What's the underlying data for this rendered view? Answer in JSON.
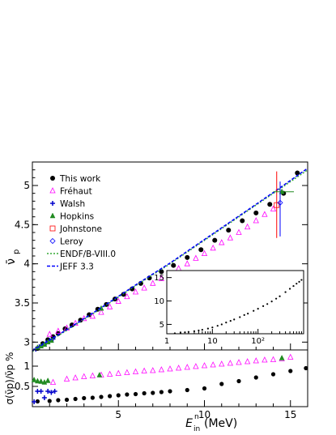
{
  "chart_data": [
    {
      "type": "scatter",
      "panel": "main",
      "ylabel": "ν̄",
      "ylabel_sub": "p",
      "xlim": [
        0,
        16
      ],
      "ylim": [
        2.9,
        5.3
      ],
      "yticks": [
        "3",
        "3.5",
        "4",
        "4.5",
        "5"
      ],
      "legend_position": "top-left",
      "series": [
        {
          "name": "This work",
          "marker": "dot",
          "color": "#000000",
          "x": [
            0.3,
            0.6,
            0.9,
            1.2,
            1.5,
            1.9,
            2.3,
            2.8,
            3.3,
            3.8,
            4.3,
            4.8,
            5.3,
            5.8,
            6.3,
            6.8,
            7.5,
            8.2,
            9.0,
            9.8,
            10.6,
            11.4,
            12.2,
            13.0,
            13.8,
            14.6,
            15.4
          ],
          "y": [
            2.92,
            2.98,
            3.03,
            3.07,
            3.11,
            3.17,
            3.22,
            3.28,
            3.35,
            3.42,
            3.48,
            3.55,
            3.61,
            3.68,
            3.75,
            3.82,
            3.9,
            3.98,
            4.08,
            4.18,
            4.3,
            4.43,
            4.55,
            4.65,
            4.76,
            4.9,
            5.16
          ]
        },
        {
          "name": "Fréhaut",
          "marker": "triangle-open",
          "color": "#ff00ff",
          "x": [
            1.0,
            1.5,
            2.0,
            2.5,
            3.0,
            3.5,
            4.0,
            4.5,
            5.0,
            5.5,
            6.0,
            6.5,
            7.0,
            7.5,
            8.0,
            8.5,
            9.0,
            9.5,
            10.0,
            10.5,
            11.0,
            11.5,
            12.0,
            12.5,
            13.0,
            13.5,
            14.0
          ],
          "y": [
            3.1,
            3.14,
            3.18,
            3.24,
            3.3,
            3.33,
            3.38,
            3.45,
            3.52,
            3.58,
            3.64,
            3.69,
            3.75,
            3.81,
            3.87,
            3.94,
            4.0,
            4.07,
            4.13,
            4.2,
            4.27,
            4.33,
            4.4,
            4.47,
            4.55,
            4.63,
            4.7
          ]
        },
        {
          "name": "Walsh",
          "marker": "cross",
          "color": "#0000cc",
          "x": [
            0.2,
            0.4,
            0.6,
            0.8,
            1.0,
            1.2
          ],
          "y": [
            2.91,
            2.94,
            2.96,
            2.99,
            3.02,
            3.04
          ]
        },
        {
          "name": "Hopkins",
          "marker": "triangle-filled",
          "color": "#228b22",
          "x": [
            0.3,
            0.5,
            0.7,
            0.9,
            1.1,
            4.0,
            14.5
          ],
          "y": [
            2.93,
            2.95,
            2.97,
            3.0,
            3.02,
            3.43,
            4.92
          ]
        },
        {
          "name": "Johnstone",
          "marker": "square-open",
          "color": "#ff0000",
          "x": [
            14.2
          ],
          "y": [
            4.75
          ]
        },
        {
          "name": "Leroy",
          "marker": "diamond-open",
          "color": "#0000ff",
          "x": [
            14.4
          ],
          "y": [
            4.78
          ]
        },
        {
          "name": "ENDF/B-VIII.0",
          "line": "dotted",
          "color": "#33aa33",
          "x": [
            0,
            2,
            4,
            6,
            8,
            10,
            12,
            14,
            16
          ],
          "y": [
            2.88,
            3.15,
            3.43,
            3.72,
            4.0,
            4.3,
            4.6,
            4.9,
            5.2
          ]
        },
        {
          "name": "JEFF 3.3",
          "line": "dashed",
          "color": "#0000ff",
          "x": [
            0,
            2,
            4,
            6,
            8,
            10,
            12,
            14,
            16
          ],
          "y": [
            2.89,
            3.16,
            3.44,
            3.73,
            4.01,
            4.31,
            4.61,
            4.91,
            5.22
          ]
        }
      ]
    },
    {
      "type": "scatter",
      "panel": "inset",
      "xscale": "log",
      "xlim": [
        1,
        1000
      ],
      "ylim": [
        3,
        16.5
      ],
      "xticks": [
        "1",
        "10",
        "10²"
      ],
      "yticks": [
        "5",
        "10",
        "15"
      ],
      "x": [
        1.5,
        2,
        2.5,
        3,
        4,
        5,
        6,
        8,
        10,
        13,
        16,
        20,
        25,
        30,
        40,
        50,
        60,
        80,
        100,
        130,
        160,
        200,
        250,
        300,
        400,
        500,
        600,
        700,
        800,
        900
      ],
      "y": [
        3.1,
        3.2,
        3.3,
        3.4,
        3.55,
        3.7,
        3.85,
        4.1,
        4.35,
        4.7,
        5.0,
        5.4,
        5.75,
        6.05,
        6.55,
        7.0,
        7.3,
        7.9,
        8.35,
        8.9,
        9.35,
        9.9,
        10.5,
        11.0,
        11.9,
        12.6,
        13.2,
        13.7,
        14.1,
        14.5
      ]
    },
    {
      "type": "scatter",
      "panel": "ratio",
      "ylabel": "σ(ν̄p)/ν̄p %",
      "xlabel": "E",
      "xlabel_sup": "n",
      "xlabel_sub": "in",
      "xlabel_unit": "(MeV)",
      "xlim": [
        0,
        16
      ],
      "ylim": [
        0,
        1.4
      ],
      "xticks": [
        "5",
        "10",
        "15"
      ],
      "yticks": [
        "0.5",
        "1"
      ],
      "series": [
        {
          "name": "This work",
          "marker": "dot",
          "color": "#000000",
          "x": [
            0.3,
            1.0,
            1.5,
            2.0,
            2.5,
            3.0,
            3.5,
            4.0,
            4.5,
            5.0,
            5.5,
            6.0,
            6.5,
            7.0,
            7.5,
            8.0,
            9.0,
            10.0,
            11.0,
            12.0,
            13.0,
            14.0,
            15.0,
            15.9
          ],
          "y": [
            0.13,
            0.14,
            0.16,
            0.17,
            0.19,
            0.21,
            0.22,
            0.24,
            0.26,
            0.28,
            0.3,
            0.31,
            0.33,
            0.34,
            0.36,
            0.38,
            0.41,
            0.45,
            0.56,
            0.63,
            0.72,
            0.8,
            0.88,
            0.95
          ]
        },
        {
          "name": "Fréhaut",
          "marker": "triangle-open",
          "color": "#ff00ff",
          "x": [
            1.2,
            2.0,
            2.5,
            3.0,
            3.5,
            4.0,
            4.5,
            5.0,
            5.5,
            6.0,
            6.5,
            7.0,
            7.5,
            8.0,
            8.5,
            9.0,
            9.5,
            10.0,
            10.5,
            11.0,
            11.5,
            12.0,
            12.5,
            13.0,
            13.5,
            14.0,
            14.5,
            15.0
          ],
          "y": [
            0.6,
            0.68,
            0.71,
            0.74,
            0.76,
            0.78,
            0.8,
            0.82,
            0.84,
            0.86,
            0.88,
            0.89,
            0.91,
            0.93,
            0.95,
            0.97,
            0.99,
            1.01,
            1.03,
            1.05,
            1.07,
            1.09,
            1.11,
            1.13,
            1.15,
            1.16,
            1.18,
            1.22
          ]
        },
        {
          "name": "Walsh",
          "marker": "cross",
          "color": "#0000cc",
          "x": [
            0.1,
            0.3,
            0.5,
            0.7,
            0.9,
            1.1,
            1.3
          ],
          "y": [
            0.12,
            0.38,
            0.38,
            0.22,
            0.38,
            0.35,
            0.38
          ]
        },
        {
          "name": "Hopkins",
          "marker": "triangle-filled",
          "color": "#228b22",
          "x": [
            0.1,
            0.3,
            0.5,
            0.7,
            0.9,
            3.9,
            14.5
          ],
          "y": [
            0.66,
            0.63,
            0.62,
            0.6,
            0.64,
            0.78,
            1.2
          ]
        }
      ]
    }
  ]
}
